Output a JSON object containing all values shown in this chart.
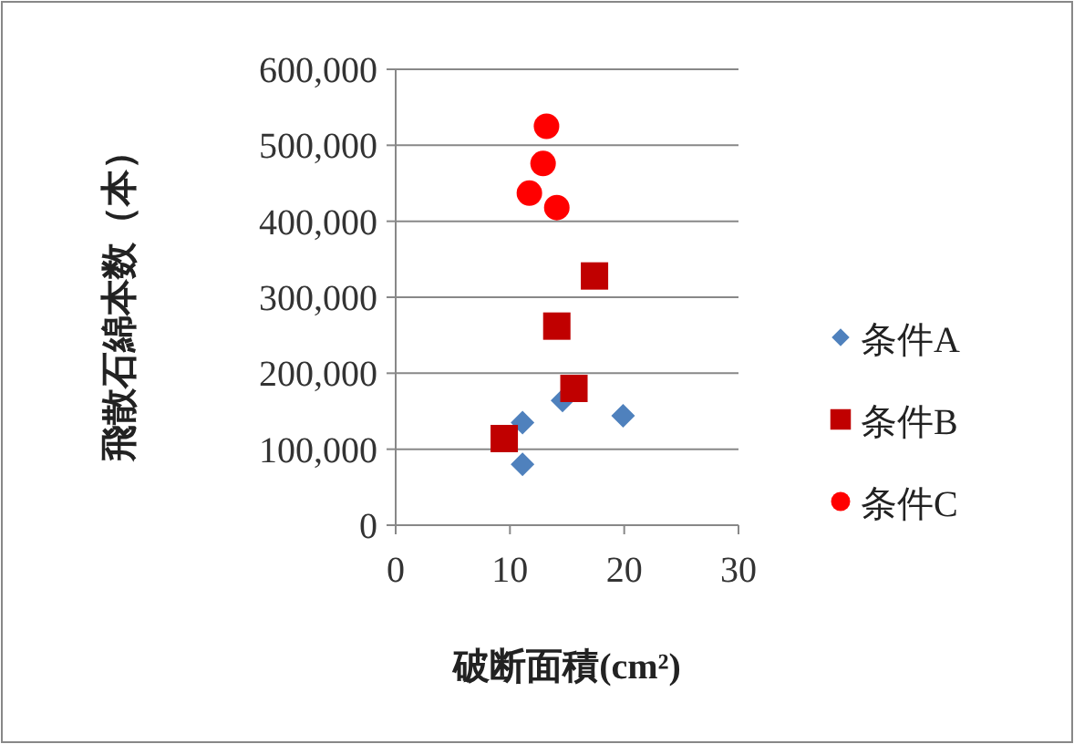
{
  "chart_data": {
    "type": "scatter",
    "xlabel": "破断面積(cm²)",
    "ylabel": "飛散石綿本数（本）",
    "xlim": [
      0,
      30
    ],
    "xticks": [
      0,
      10,
      20,
      30
    ],
    "ylim": [
      0,
      600000
    ],
    "yticks": [
      0,
      {
        "value": 100000,
        "label": "100,000"
      },
      {
        "value": 200000,
        "label": "200,000"
      },
      {
        "value": 300000,
        "label": "300,000"
      },
      {
        "value": 400000,
        "label": "400,000"
      },
      {
        "value": 500000,
        "label": "500,000"
      },
      {
        "value": 600000,
        "label": "600,000"
      }
    ],
    "grid": "y",
    "legend": "right",
    "series": [
      {
        "name": "条件A",
        "color": "#4f81bd",
        "marker": "diamond",
        "x": [
          11.1,
          11.1,
          14.6,
          19.9
        ],
        "values": [
          135000,
          80000,
          164000,
          144000
        ]
      },
      {
        "name": "条件B",
        "color": "#c00000",
        "marker": "square",
        "x": [
          9.5,
          15.6,
          14.1,
          17.4
        ],
        "values": [
          114000,
          180000,
          262000,
          328000
        ]
      },
      {
        "name": "条件C",
        "color": "#ff0000",
        "marker": "circle",
        "x": [
          13.2,
          12.9,
          11.7,
          14.1
        ],
        "values": [
          525000,
          476000,
          437000,
          418000
        ]
      }
    ]
  }
}
